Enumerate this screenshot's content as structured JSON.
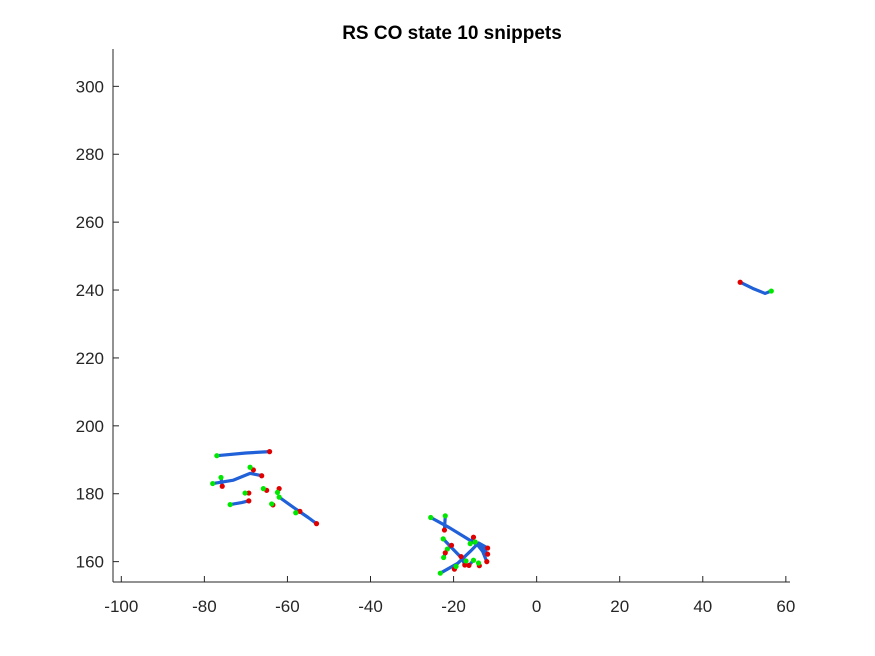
{
  "chart_data": {
    "type": "line",
    "title": "RS  CO state 10 snippets",
    "xlabel": "",
    "ylabel": "",
    "xlim": [
      -102,
      61
    ],
    "ylim": [
      154,
      311
    ],
    "xticks": [
      -100,
      -80,
      -60,
      -40,
      -20,
      0,
      20,
      40,
      60
    ],
    "yticks": [
      160,
      180,
      200,
      220,
      240,
      260,
      280,
      300
    ],
    "grid": false,
    "colors": {
      "line": "#2060d8",
      "start": "#00e800",
      "end": "#e00000"
    },
    "series": [
      {
        "points": [
          [
            49,
            242.3
          ],
          [
            52,
            240.5
          ],
          [
            55,
            239
          ],
          [
            56.5,
            239.7
          ]
        ],
        "start": [
          56.5,
          239.7
        ],
        "end": [
          49,
          242.3
        ]
      },
      {
        "points": [
          [
            -77,
            191.2
          ],
          [
            -70,
            192
          ],
          [
            -64.3,
            192.4
          ]
        ],
        "start": [
          -77,
          191.2
        ],
        "end": [
          -64.3,
          192.4
        ]
      },
      {
        "points": [
          [
            -78,
            183
          ],
          [
            -73,
            184
          ],
          [
            -69,
            186
          ],
          [
            -66.2,
            185.3
          ]
        ],
        "start": [
          -78,
          183
        ],
        "end": [
          -66.2,
          185.3
        ]
      },
      {
        "points": [
          [
            -76,
            184.8
          ],
          [
            -75.7,
            182.2
          ]
        ],
        "start": [
          -76,
          184.8
        ],
        "end": [
          -75.7,
          182.2
        ]
      },
      {
        "points": [
          [
            -69,
            187.8
          ],
          [
            -68.2,
            187
          ]
        ],
        "start": [
          -69,
          187.8
        ],
        "end": [
          -68.2,
          187
        ]
      },
      {
        "points": [
          [
            -70.2,
            180.2
          ],
          [
            -69.3,
            180.2
          ]
        ],
        "start": [
          -70.2,
          180.2
        ],
        "end": [
          -69.3,
          180.2
        ]
      },
      {
        "points": [
          [
            -73.8,
            176.8
          ],
          [
            -71,
            177.4
          ],
          [
            -69.3,
            177.9
          ]
        ],
        "start": [
          -73.8,
          176.8
        ],
        "end": [
          -69.3,
          177.9
        ]
      },
      {
        "points": [
          [
            -65.8,
            181.5
          ],
          [
            -65,
            181
          ]
        ],
        "start": [
          -65.8,
          181.5
        ],
        "end": [
          -65,
          181
        ]
      },
      {
        "points": [
          [
            -62,
            179
          ],
          [
            -58,
            175.5
          ],
          [
            -55,
            173
          ],
          [
            -53,
            171.2
          ]
        ],
        "start": [
          -62,
          179
        ],
        "end": [
          -53,
          171.2
        ]
      },
      {
        "points": [
          [
            -62.4,
            180.4
          ],
          [
            -62,
            181.5
          ]
        ],
        "start": [
          -62.4,
          180.4
        ],
        "end": [
          -62,
          181.5
        ]
      },
      {
        "points": [
          [
            -58,
            174.4
          ],
          [
            -57,
            174.8
          ]
        ],
        "start": [
          -58,
          174.4
        ],
        "end": [
          -57,
          174.8
        ]
      },
      {
        "points": [
          [
            -63.8,
            177
          ],
          [
            -63.5,
            176.7
          ]
        ],
        "start": [
          -63.8,
          177
        ],
        "end": [
          -63.5,
          176.7
        ]
      },
      {
        "points": [
          [
            -25.5,
            173
          ],
          [
            -21,
            170
          ],
          [
            -17,
            167
          ],
          [
            -13,
            164
          ],
          [
            -11.8,
            162.2
          ]
        ],
        "start": [
          -25.5,
          173
        ],
        "end": [
          -11.8,
          162.2
        ]
      },
      {
        "points": [
          [
            -23.2,
            156.6
          ],
          [
            -19,
            159.5
          ],
          [
            -16,
            163
          ],
          [
            -14,
            165.5
          ],
          [
            -11.8,
            164
          ]
        ],
        "start": [
          -23.2,
          156.6
        ],
        "end": [
          -11.8,
          164
        ]
      },
      {
        "points": [
          [
            -22.5,
            166.7
          ],
          [
            -20,
            163.5
          ],
          [
            -18,
            161
          ],
          [
            -17.3,
            159
          ]
        ],
        "start": [
          -22.5,
          166.7
        ],
        "end": [
          -17.3,
          159
        ]
      },
      {
        "points": [
          [
            -22,
            173.5
          ],
          [
            -22.2,
            169.3
          ]
        ],
        "start": [
          -22,
          173.5
        ],
        "end": [
          -22.2,
          169.3
        ]
      },
      {
        "points": [
          [
            -16,
            165.3
          ],
          [
            -15.2,
            167.2
          ]
        ],
        "start": [
          -16,
          165.3
        ],
        "end": [
          -15.2,
          167.2
        ]
      },
      {
        "points": [
          [
            -14.8,
            165.8
          ],
          [
            -13,
            163
          ],
          [
            -12,
            160
          ]
        ],
        "start": [
          -14.8,
          165.8
        ],
        "end": [
          -12,
          160
        ]
      },
      {
        "points": [
          [
            -21.5,
            163.7
          ],
          [
            -20.5,
            164.8
          ]
        ],
        "start": [
          -21.5,
          163.7
        ],
        "end": [
          -20.5,
          164.8
        ]
      },
      {
        "points": [
          [
            -22.4,
            161.2
          ],
          [
            -22,
            162.6
          ]
        ],
        "start": [
          -22.4,
          161.2
        ],
        "end": [
          -22,
          162.6
        ]
      },
      {
        "points": [
          [
            -15.2,
            160.4
          ],
          [
            -16.3,
            158.9
          ]
        ],
        "start": [
          -15.2,
          160.4
        ],
        "end": [
          -16.3,
          158.9
        ]
      },
      {
        "points": [
          [
            -19.4,
            158.6
          ],
          [
            -19.8,
            157.8
          ]
        ],
        "start": [
          -19.4,
          158.6
        ],
        "end": [
          -19.8,
          157.8
        ]
      },
      {
        "points": [
          [
            -14,
            159.6
          ],
          [
            -13.8,
            158.8
          ]
        ],
        "start": [
          -14,
          159.6
        ],
        "end": [
          -13.8,
          158.8
        ]
      },
      {
        "points": [
          [
            -17,
            160.2
          ],
          [
            -18.2,
            161.5
          ]
        ],
        "start": [
          -17,
          160.2
        ],
        "end": [
          -18.2,
          161.5
        ]
      }
    ]
  }
}
